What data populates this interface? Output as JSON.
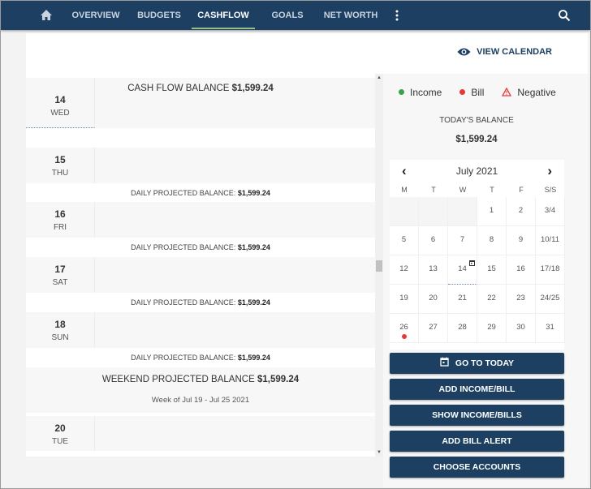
{
  "nav": {
    "items": [
      {
        "label": "OVERVIEW"
      },
      {
        "label": "BUDGETS"
      },
      {
        "label": "CASHFLOW",
        "active": true
      },
      {
        "label": "GOALS"
      },
      {
        "label": "NET WORTH"
      }
    ],
    "accent": "#1c3f62"
  },
  "header": {
    "view_calendar": "VIEW CALENDAR"
  },
  "list": {
    "cash_flow_label": "CASH FLOW BALANCE",
    "cash_flow_value": "$1,599.24",
    "projected_label": "DAILY PROJECTED BALANCE:",
    "projected_value": "$1,599.24",
    "days": [
      {
        "num": "14",
        "name": "WED"
      },
      {
        "num": "15",
        "name": "THU"
      },
      {
        "num": "16",
        "name": "FRI"
      },
      {
        "num": "17",
        "name": "SAT"
      },
      {
        "num": "18",
        "name": "SUN"
      },
      {
        "num": "20",
        "name": "TUE"
      }
    ],
    "weekend_label": "WEEKEND PROJECTED BALANCE",
    "weekend_value": "$1,599.24",
    "week_of": "Week of Jul 19 - Jul 25 2021"
  },
  "legend": {
    "income": "Income",
    "bill": "Bill",
    "negative": "Negative",
    "income_color": "#3aa34a",
    "bill_color": "#e53935",
    "negative_color": "#e53935"
  },
  "today_balance": {
    "label": "TODAY'S BALANCE",
    "value": "$1,599.24"
  },
  "calendar": {
    "title": "July 2021",
    "weekdays": [
      "M",
      "T",
      "W",
      "T",
      "F",
      "S/S"
    ],
    "rows": [
      [
        "",
        "",
        "",
        "1",
        "2",
        "3/4"
      ],
      [
        "5",
        "6",
        "7",
        "8",
        "9",
        "10/11"
      ],
      [
        "12",
        "13",
        "14",
        "15",
        "16",
        "17/18"
      ],
      [
        "19",
        "20",
        "21",
        "22",
        "23",
        "24/25"
      ],
      [
        "26",
        "27",
        "28",
        "29",
        "30",
        "31"
      ]
    ],
    "today": "14",
    "bill_dates": [
      "26"
    ]
  },
  "buttons": {
    "go_today": "GO TO TODAY",
    "add_income_bill": "ADD INCOME/BILL",
    "show_income_bills": "SHOW INCOME/BILLS",
    "add_bill_alert": "ADD BILL ALERT",
    "choose_accounts": "CHOOSE ACCOUNTS"
  }
}
